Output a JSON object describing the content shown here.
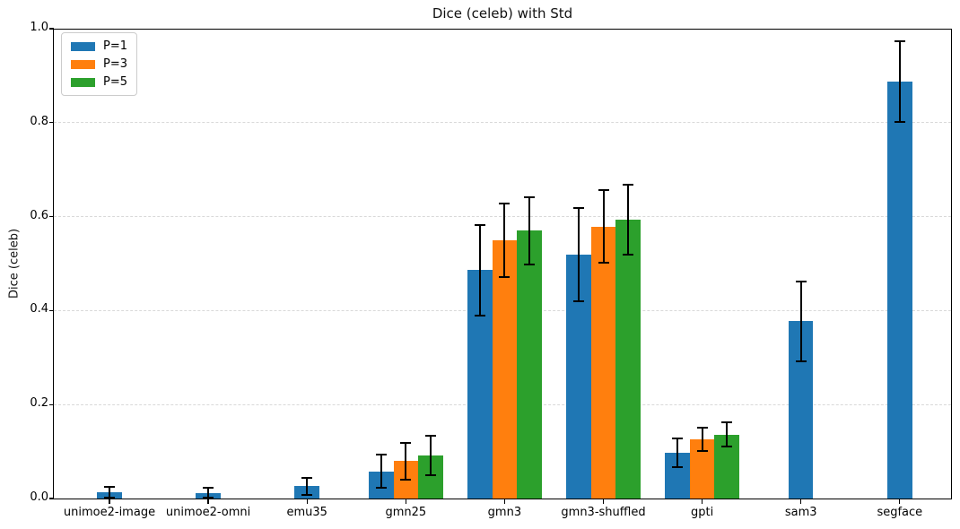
{
  "figure": {
    "background": "#ffffff"
  },
  "chart_data": {
    "type": "bar",
    "title": "Dice (celeb) with Std",
    "xlabel": "",
    "ylabel": "Dice (celeb)",
    "categories": [
      "unimoe2-image",
      "unimoe2-omni",
      "emu35",
      "gmn25",
      "gmn3",
      "gmn3-shuffled",
      "gpti",
      "sam3",
      "segface"
    ],
    "series": [
      {
        "name": "P=1",
        "color": "#1f77b4",
        "values": [
          0.013,
          0.012,
          0.026,
          0.058,
          0.486,
          0.519,
          0.097,
          0.377,
          0.888
        ],
        "std": [
          0.011,
          0.01,
          0.018,
          0.036,
          0.097,
          0.099,
          0.031,
          0.085,
          0.086
        ]
      },
      {
        "name": "P=3",
        "color": "#ff7f0e",
        "values": [
          null,
          null,
          null,
          0.08,
          0.549,
          0.579,
          0.126,
          null,
          null
        ],
        "std": [
          null,
          null,
          null,
          0.039,
          0.078,
          0.078,
          0.025,
          null,
          null
        ]
      },
      {
        "name": "P=5",
        "color": "#2ca02c",
        "values": [
          null,
          null,
          null,
          0.092,
          0.57,
          0.594,
          0.136,
          null,
          null
        ],
        "std": [
          null,
          null,
          null,
          0.042,
          0.071,
          0.074,
          0.026,
          null,
          null
        ]
      }
    ],
    "ylim": [
      0.0,
      1.0
    ],
    "yticks": [
      0.0,
      0.2,
      0.4,
      0.6,
      0.8,
      1.0
    ],
    "grid": {
      "axis": "y",
      "style": "dashed",
      "color": "#d9d9d9"
    },
    "legend": {
      "position": "upper-left",
      "entries": [
        "P=1",
        "P=3",
        "P=5"
      ]
    },
    "error_bars": {
      "shown": true,
      "color": "#000000"
    }
  }
}
